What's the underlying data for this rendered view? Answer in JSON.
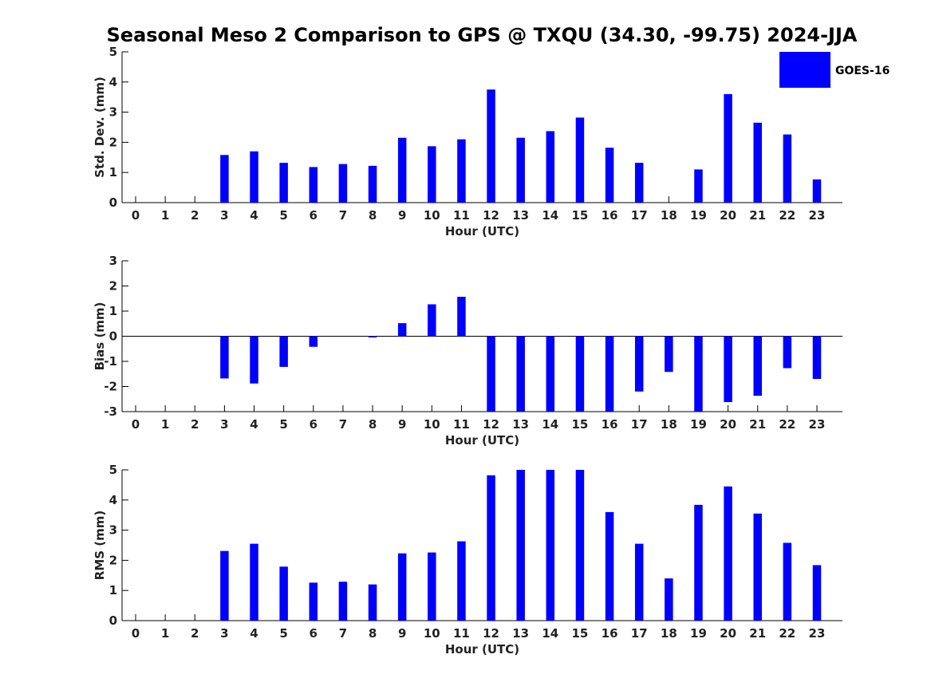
{
  "title": "Seasonal Meso 2 Comparison to GPS @ TXQU (34.30, -99.75) 2024-JJA",
  "legend": {
    "label": "GOES-16",
    "color": "#0000ff"
  },
  "chart_data": [
    {
      "type": "bar",
      "ylabel": "Std. Dev. (mm)",
      "xlabel": "Hour (UTC)",
      "ylim": [
        0,
        5
      ],
      "yticks": [
        "0",
        "1",
        "2",
        "3",
        "4",
        "5"
      ],
      "categories": [
        "0",
        "1",
        "2",
        "3",
        "4",
        "5",
        "6",
        "7",
        "8",
        "9",
        "10",
        "11",
        "12",
        "13",
        "14",
        "15",
        "16",
        "17",
        "18",
        "19",
        "20",
        "21",
        "22",
        "23"
      ],
      "series": [
        {
          "name": "GOES-16",
          "values": [
            null,
            null,
            null,
            1.58,
            1.7,
            1.32,
            1.18,
            1.28,
            1.22,
            2.15,
            1.87,
            2.1,
            3.75,
            2.15,
            2.37,
            2.82,
            1.82,
            1.32,
            null,
            1.1,
            3.6,
            2.65,
            2.26,
            0.77
          ]
        }
      ],
      "grid": false
    },
    {
      "type": "bar",
      "ylabel": "Bias (mm)",
      "xlabel": "Hour (UTC)",
      "ylim": [
        -3,
        3
      ],
      "yticks": [
        "-3",
        "-2",
        "-1",
        "0",
        "1",
        "2",
        "3"
      ],
      "categories": [
        "0",
        "1",
        "2",
        "3",
        "4",
        "5",
        "6",
        "7",
        "8",
        "9",
        "10",
        "11",
        "12",
        "13",
        "14",
        "15",
        "16",
        "17",
        "18",
        "19",
        "20",
        "21",
        "22",
        "23"
      ],
      "series": [
        {
          "name": "GOES-16",
          "values": [
            null,
            null,
            null,
            -1.68,
            -1.88,
            -1.22,
            -0.42,
            0,
            -0.05,
            0.52,
            1.27,
            1.57,
            -3.0,
            -3.0,
            -3.0,
            -3.0,
            -3.0,
            -2.2,
            -1.42,
            -3.0,
            -2.62,
            -2.37,
            -1.27,
            -1.7
          ]
        }
      ],
      "grid": false
    },
    {
      "type": "bar",
      "ylabel": "RMS (mm)",
      "xlabel": "Hour (UTC)",
      "ylim": [
        0,
        5
      ],
      "yticks": [
        "0",
        "1",
        "2",
        "3",
        "4",
        "5"
      ],
      "categories": [
        "0",
        "1",
        "2",
        "3",
        "4",
        "5",
        "6",
        "7",
        "8",
        "9",
        "10",
        "11",
        "12",
        "13",
        "14",
        "15",
        "16",
        "17",
        "18",
        "19",
        "20",
        "21",
        "22",
        "23"
      ],
      "series": [
        {
          "name": "GOES-16",
          "values": [
            null,
            null,
            null,
            2.31,
            2.55,
            1.79,
            1.26,
            1.29,
            1.2,
            2.23,
            2.26,
            2.63,
            4.82,
            5.0,
            5.0,
            5.0,
            3.6,
            2.55,
            1.4,
            3.84,
            4.45,
            3.55,
            2.58,
            1.84
          ]
        }
      ],
      "grid": false
    }
  ]
}
